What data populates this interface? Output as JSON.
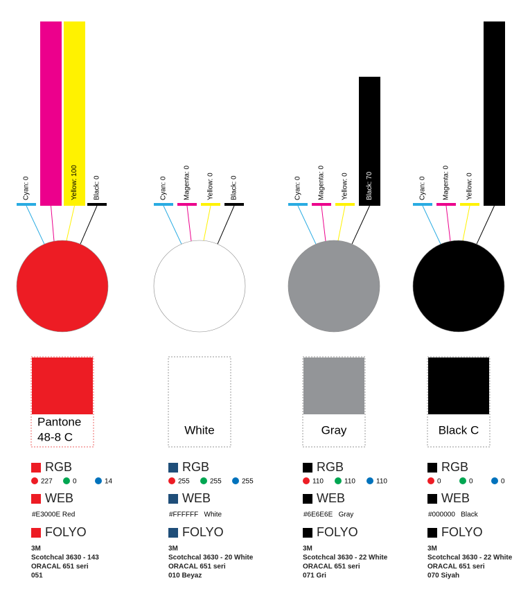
{
  "columns": [
    {
      "color": "#ed1c24",
      "icon_color": "#ed1c24",
      "border": "#f08080",
      "inks": [
        {
          "label": "Cyan: 0",
          "value": 0,
          "color": "#29abe2"
        },
        {
          "value": 100,
          "color": "#ec008c"
        },
        {
          "label": "Yellow: 100",
          "value": 100,
          "color": "#fff200"
        },
        {
          "label": "Black: 0",
          "value": 0,
          "color": "#000000"
        }
      ],
      "name": [
        "Pantone",
        "48-8 C"
      ],
      "rgb_heading": "RGB",
      "rgb": [
        227,
        0,
        14
      ],
      "web_heading": "WEB",
      "web": "#E3000E Red",
      "folyo_heading": "FOLYO",
      "folyo": [
        "3M",
        "Scotchcal 3630 - 143",
        "ORACAL 651 seri",
        "051"
      ]
    },
    {
      "color": "#ffffff",
      "icon_color": "#1f4e79",
      "border": "#aaaaaa",
      "inks": [
        {
          "label": "Cyan: 0",
          "value": 0,
          "color": "#29abe2"
        },
        {
          "label": "Magenta: 0",
          "value": 0,
          "color": "#ec008c"
        },
        {
          "label": "Yellow: 0",
          "value": 0,
          "color": "#fff200"
        },
        {
          "label": "Black: 0",
          "value": 0,
          "color": "#000000"
        }
      ],
      "name": [
        "White"
      ],
      "rgb_heading": "RGB",
      "rgb": [
        255,
        255,
        255
      ],
      "web_heading": "WEB",
      "web": "#FFFFFF   White",
      "folyo_heading": "FOLYO",
      "folyo": [
        "3M",
        "Scotchcal 3630 - 20 White",
        "ORACAL 651 seri",
        "010 Beyaz"
      ]
    },
    {
      "color": "#939598",
      "icon_color": "#000000",
      "border": "#aaaaaa",
      "inks": [
        {
          "label": "Cyan: 0",
          "value": 0,
          "color": "#29abe2"
        },
        {
          "label": "Magenta: 0",
          "value": 0,
          "color": "#ec008c"
        },
        {
          "label": "Yellow: 0",
          "value": 0,
          "color": "#fff200"
        },
        {
          "label": "Black: 70",
          "value": 70,
          "color": "#000000"
        }
      ],
      "name": [
        "Gray"
      ],
      "rgb_heading": "RGB",
      "rgb": [
        110,
        110,
        110
      ],
      "web_heading": "WEB",
      "web": "#6E6E6E   Gray",
      "folyo_heading": "FOLYO",
      "folyo": [
        "3M",
        "Scotchcal 3630 - 22 White",
        "ORACAL 651 seri",
        "071 Gri"
      ]
    },
    {
      "color": "#000000",
      "icon_color": "#000000",
      "border": "#aaaaaa",
      "inks": [
        {
          "label": "Cyan: 0",
          "value": 0,
          "color": "#29abe2"
        },
        {
          "label": "Magenta: 0",
          "value": 0,
          "color": "#ec008c"
        },
        {
          "label": "Yellow: 0",
          "value": 0,
          "color": "#fff200"
        },
        {
          "value": 100,
          "color": "#000000"
        }
      ],
      "name": [
        "Black C"
      ],
      "rgb_heading": "RGB",
      "rgb": [
        0,
        0,
        0
      ],
      "web_heading": "WEB",
      "web": "#000000   Black",
      "folyo_heading": "FOLYO",
      "folyo": [
        "3M",
        "Scotchcal 3630 - 22 White",
        "ORACAL 651 seri",
        "070 Siyah"
      ]
    }
  ]
}
